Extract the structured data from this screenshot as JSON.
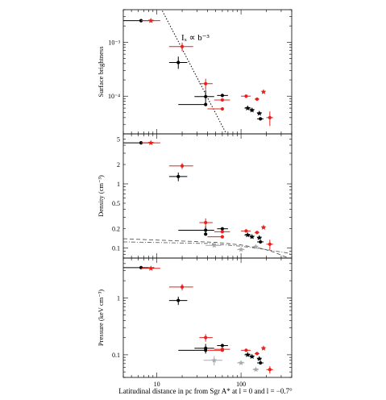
{
  "chart_data": [
    {
      "type": "scatter",
      "panel": "top",
      "ylabel": "Surface brightness",
      "yscale": "log",
      "xscale": "log",
      "xlim": [
        4,
        400
      ],
      "ylim": [
        2e-05,
        0.004
      ],
      "yticks": [
        {
          "value": 0.001,
          "label": "10⁻³"
        },
        {
          "value": 0.0001,
          "label": "10⁻⁴"
        }
      ],
      "annotation": "Iₓ ∝ b⁻³",
      "model_line": {
        "style": "dotted",
        "form": "power_law",
        "exponent": -3,
        "anchor": [
          20,
          0.00075
        ]
      },
      "series": [
        {
          "color": "#000000",
          "points": [
            {
              "x": 6.5,
              "y": 0.0025,
              "xerr": [
                2.5,
                2.8
              ],
              "marker": "circle"
            },
            {
              "x": 18,
              "y": 0.00042,
              "xerr": [
                4,
                5
              ],
              "yerr": [
                0.0001,
                0.00012
              ],
              "marker": "circle"
            },
            {
              "x": 38,
              "y": 9.8e-05,
              "xerr": [
                10,
                10
              ],
              "yerr": [
                3e-05,
                3e-05
              ],
              "marker": "circle"
            },
            {
              "x": 38,
              "y": 7e-05,
              "xerr": [
                20,
                0
              ],
              "marker": "circle"
            },
            {
              "x": 60,
              "y": 0.000103,
              "xerr": [
                8,
                10
              ],
              "marker": "circle"
            },
            {
              "x": 120,
              "y": 6e-05,
              "xerr": [
                10,
                10
              ],
              "marker": "star"
            },
            {
              "x": 135,
              "y": 5.5e-05,
              "xerr": [
                8,
                8
              ],
              "marker": "star"
            },
            {
              "x": 165,
              "y": 4.8e-05,
              "xerr": [
                10,
                10
              ],
              "marker": "star"
            },
            {
              "x": 170,
              "y": 3.8e-05,
              "xerr": [
                15,
                15
              ],
              "marker": "circle"
            }
          ]
        },
        {
          "color": "#e8201c",
          "points": [
            {
              "x": 8.5,
              "y": 0.0025,
              "xerr": [
                2,
                2.5
              ],
              "marker": "star"
            },
            {
              "x": 20,
              "y": 0.00083,
              "xerr": [
                6,
                7
              ],
              "yerr": [
                0.00015,
                0.00015
              ],
              "marker": "circle"
            },
            {
              "x": 38,
              "y": 0.00017,
              "xerr": [
                6,
                8
              ],
              "yerr": [
                4e-05,
                4e-05
              ],
              "marker": "circle"
            },
            {
              "x": 60,
              "y": 8.5e-05,
              "xerr": [
                12,
                14
              ],
              "marker": "circle"
            },
            {
              "x": 60,
              "y": 5.8e-05,
              "xerr": [
                20,
                0
              ],
              "marker": "circle"
            },
            {
              "x": 115,
              "y": 0.0001,
              "xerr": [
                15,
                15
              ],
              "marker": "circle"
            },
            {
              "x": 155,
              "y": 8.8e-05,
              "xerr": [
                10,
                10
              ],
              "marker": "circle"
            },
            {
              "x": 185,
              "y": 0.00012,
              "xerr": [
                8,
                8
              ],
              "marker": "star"
            },
            {
              "x": 220,
              "y": 4e-05,
              "xerr": [
                20,
                20
              ],
              "yerr": [
                1.2e-05,
                1.2e-05
              ],
              "marker": "circle"
            }
          ]
        }
      ]
    },
    {
      "type": "scatter",
      "panel": "middle",
      "ylabel": "Density (cm⁻³)",
      "yscale": "log",
      "xscale": "log",
      "xlim": [
        4,
        400
      ],
      "ylim": [
        0.07,
        6
      ],
      "yticks": [
        {
          "value": 5,
          "label": "5"
        },
        {
          "value": 2,
          "label": "2"
        },
        {
          "value": 1,
          "label": "1"
        },
        {
          "value": 0.5,
          "label": "0.5"
        },
        {
          "value": 0.2,
          "label": "0.2"
        },
        {
          "value": 0.1,
          "label": "0.1"
        }
      ],
      "model_lines": [
        {
          "style": "dash-dot",
          "color": "#666666",
          "points": [
            [
              4,
              0.125
            ],
            [
              40,
              0.118
            ],
            [
              100,
              0.107
            ],
            [
              200,
              0.095
            ],
            [
              300,
              0.087
            ],
            [
              400,
              0.082
            ]
          ]
        },
        {
          "style": "dashed",
          "color": "#555555",
          "points": [
            [
              4,
              0.14
            ],
            [
              50,
              0.123
            ],
            [
              100,
              0.112
            ],
            [
              180,
              0.098
            ],
            [
              250,
              0.086
            ],
            [
              320,
              0.075
            ],
            [
              370,
              0.07
            ]
          ]
        }
      ],
      "series": [
        {
          "color": "#000000",
          "points": [
            {
              "x": 6.5,
              "y": 4.35,
              "xerr": [
                2.5,
                2.8
              ],
              "marker": "circle"
            },
            {
              "x": 18,
              "y": 1.3,
              "xerr": [
                4,
                5
              ],
              "yerr": [
                0.2,
                0.2
              ],
              "marker": "circle"
            },
            {
              "x": 38,
              "y": 0.19,
              "xerr": [
                20,
                10
              ],
              "yerr": [
                0.03,
                0.03
              ],
              "marker": "circle"
            },
            {
              "x": 38,
              "y": 0.165,
              "xerr": [
                0,
                0
              ],
              "marker": "circle"
            },
            {
              "x": 60,
              "y": 0.2,
              "xerr": [
                8,
                10
              ],
              "marker": "circle"
            },
            {
              "x": 120,
              "y": 0.16,
              "xerr": [
                10,
                10
              ],
              "marker": "star"
            },
            {
              "x": 135,
              "y": 0.15,
              "xerr": [
                8,
                8
              ],
              "marker": "star"
            },
            {
              "x": 165,
              "y": 0.145,
              "xerr": [
                10,
                10
              ],
              "marker": "star"
            },
            {
              "x": 170,
              "y": 0.125,
              "xerr": [
                15,
                15
              ],
              "marker": "circle"
            }
          ]
        },
        {
          "color": "#e8201c",
          "points": [
            {
              "x": 8.5,
              "y": 4.35,
              "xerr": [
                2,
                2.5
              ],
              "marker": "star"
            },
            {
              "x": 20,
              "y": 1.9,
              "xerr": [
                6,
                7
              ],
              "yerr": [
                0.2,
                0.2
              ],
              "marker": "circle"
            },
            {
              "x": 38,
              "y": 0.25,
              "xerr": [
                6,
                8
              ],
              "yerr": [
                0.04,
                0.04
              ],
              "marker": "circle"
            },
            {
              "x": 60,
              "y": 0.18,
              "xerr": [
                12,
                14
              ],
              "marker": "circle"
            },
            {
              "x": 60,
              "y": 0.15,
              "xerr": [
                20,
                0
              ],
              "marker": "circle"
            },
            {
              "x": 115,
              "y": 0.185,
              "xerr": [
                15,
                15
              ],
              "marker": "circle"
            },
            {
              "x": 155,
              "y": 0.175,
              "xerr": [
                10,
                10
              ],
              "marker": "circle"
            },
            {
              "x": 185,
              "y": 0.21,
              "xerr": [
                8,
                8
              ],
              "marker": "star"
            },
            {
              "x": 220,
              "y": 0.115,
              "xerr": [
                20,
                20
              ],
              "yerr": [
                0.02,
                0.02
              ],
              "marker": "circle"
            }
          ]
        },
        {
          "color": "#aaaaaa",
          "points": [
            {
              "x": 48,
              "y": 0.11,
              "xerr": [
                10,
                10
              ],
              "marker": "star"
            },
            {
              "x": 100,
              "y": 0.095,
              "xerr": [
                10,
                10
              ],
              "marker": "star"
            },
            {
              "x": 150,
              "y": 0.105,
              "xerr": [
                10,
                10
              ],
              "marker": "star"
            }
          ]
        }
      ]
    },
    {
      "type": "scatter",
      "panel": "bottom",
      "ylabel": "Pressure (keV cm⁻³)",
      "xlabel": "Latitudinal distance in pc from Sgr A* at l = 0  and l = −0.7°",
      "yscale": "log",
      "xscale": "log",
      "xlim": [
        4,
        400
      ],
      "ylim": [
        0.04,
        5
      ],
      "xticks": [
        {
          "value": 10,
          "label": "10"
        },
        {
          "value": 100,
          "label": "100"
        }
      ],
      "yticks": [
        {
          "value": 1,
          "label": "1"
        },
        {
          "value": 0.1,
          "label": "0.1"
        }
      ],
      "series": [
        {
          "color": "#000000",
          "points": [
            {
              "x": 6.5,
              "y": 3.4,
              "xerr": [
                2.5,
                2.8
              ],
              "marker": "circle"
            },
            {
              "x": 18,
              "y": 0.9,
              "xerr": [
                4,
                5
              ],
              "yerr": [
                0.15,
                0.15
              ],
              "marker": "circle"
            },
            {
              "x": 38,
              "y": 0.13,
              "xerr": [
                10,
                10
              ],
              "yerr": [
                0.025,
                0.025
              ],
              "marker": "circle"
            },
            {
              "x": 38,
              "y": 0.12,
              "xerr": [
                20,
                0
              ],
              "marker": "circle"
            },
            {
              "x": 60,
              "y": 0.145,
              "xerr": [
                8,
                10
              ],
              "marker": "circle"
            },
            {
              "x": 120,
              "y": 0.1,
              "xerr": [
                10,
                10
              ],
              "marker": "star"
            },
            {
              "x": 135,
              "y": 0.093,
              "xerr": [
                8,
                8
              ],
              "marker": "star"
            },
            {
              "x": 165,
              "y": 0.085,
              "xerr": [
                10,
                10
              ],
              "marker": "star"
            },
            {
              "x": 170,
              "y": 0.072,
              "xerr": [
                15,
                15
              ],
              "marker": "circle"
            }
          ]
        },
        {
          "color": "#e8201c",
          "points": [
            {
              "x": 8.5,
              "y": 3.3,
              "xerr": [
                2,
                2.5
              ],
              "marker": "star"
            },
            {
              "x": 20,
              "y": 1.55,
              "xerr": [
                6,
                7
              ],
              "yerr": [
                0.2,
                0.2
              ],
              "marker": "circle"
            },
            {
              "x": 38,
              "y": 0.2,
              "xerr": [
                6,
                8
              ],
              "yerr": [
                0.03,
                0.03
              ],
              "marker": "circle"
            },
            {
              "x": 60,
              "y": 0.125,
              "xerr": [
                12,
                14
              ],
              "marker": "circle"
            },
            {
              "x": 60,
              "y": 0.12,
              "xerr": [
                20,
                0
              ],
              "marker": "circle"
            },
            {
              "x": 115,
              "y": 0.12,
              "xerr": [
                15,
                15
              ],
              "marker": "circle"
            },
            {
              "x": 155,
              "y": 0.105,
              "xerr": [
                10,
                10
              ],
              "marker": "circle"
            },
            {
              "x": 185,
              "y": 0.13,
              "xerr": [
                8,
                8
              ],
              "marker": "star"
            },
            {
              "x": 220,
              "y": 0.055,
              "xerr": [
                20,
                20
              ],
              "yerr": [
                0.008,
                0.008
              ],
              "marker": "circle"
            }
          ]
        },
        {
          "color": "#aaaaaa",
          "points": [
            {
              "x": 48,
              "y": 0.08,
              "xerr": [
                12,
                12
              ],
              "yerr": [
                0.015,
                0.015
              ],
              "marker": "star"
            },
            {
              "x": 100,
              "y": 0.072,
              "xerr": [
                10,
                10
              ],
              "marker": "star"
            },
            {
              "x": 150,
              "y": 0.055,
              "xerr": [
                12,
                12
              ],
              "marker": "star"
            }
          ]
        }
      ]
    }
  ]
}
